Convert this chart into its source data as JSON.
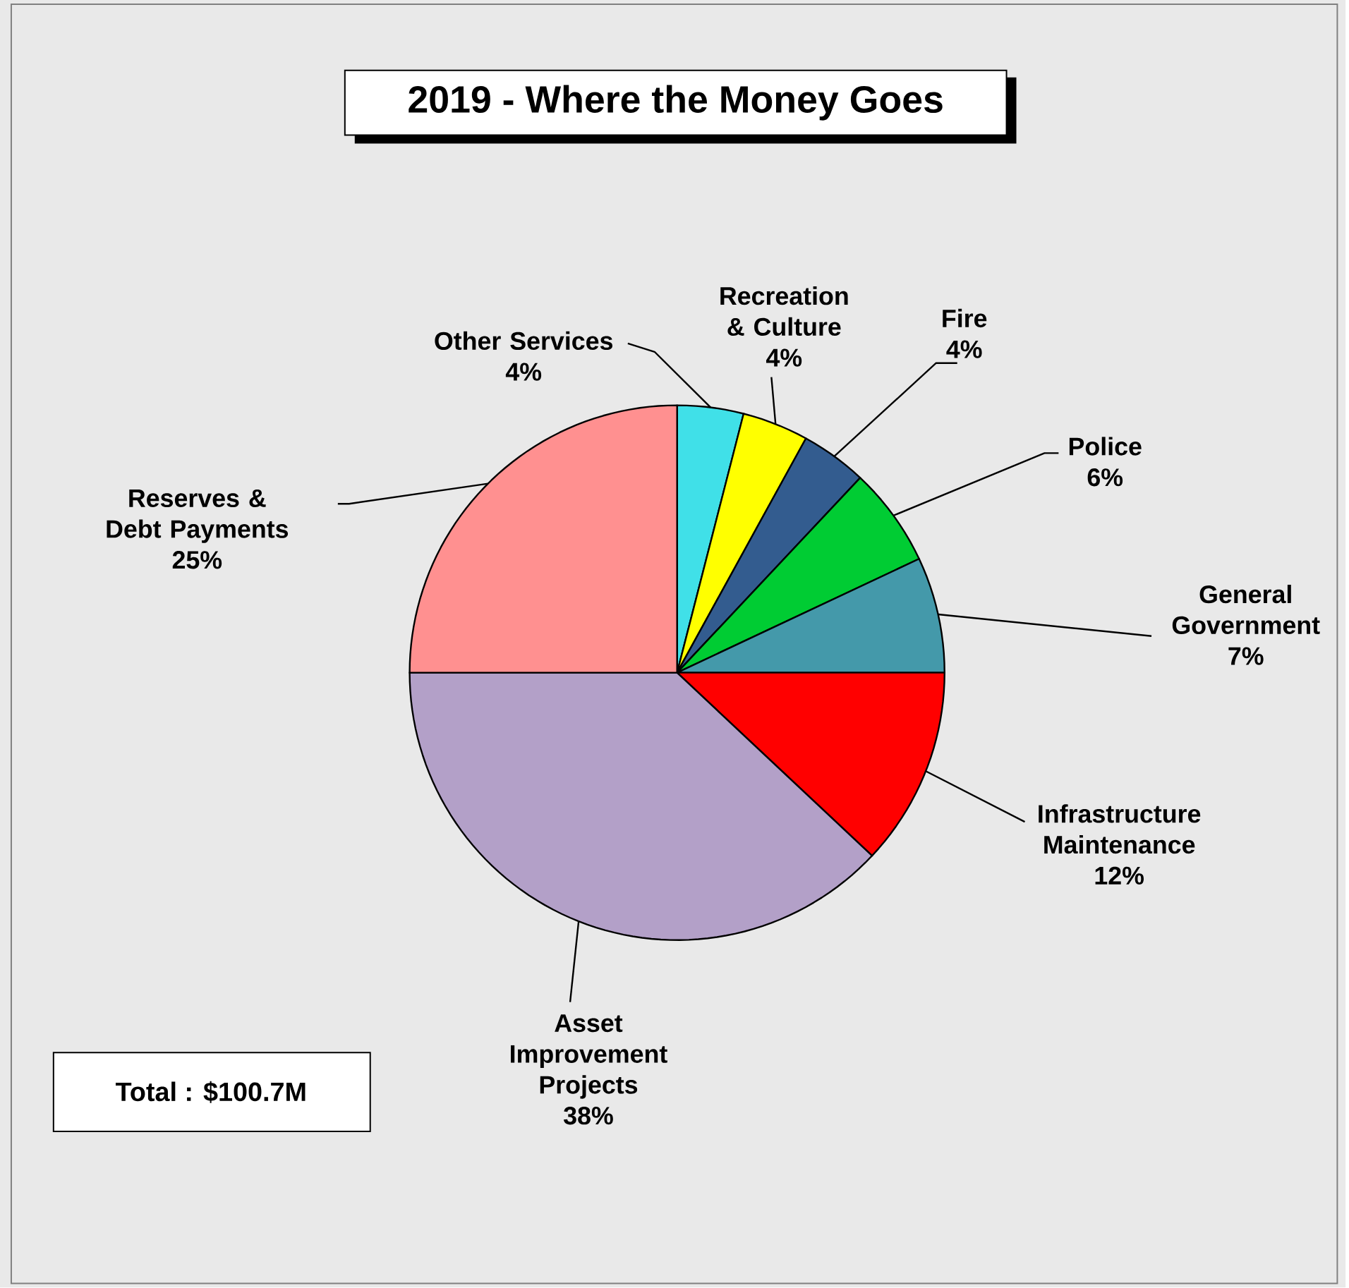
{
  "chart_data": {
    "type": "pie",
    "title": "2019 - Where the Money Goes",
    "categories": [
      "Other Services",
      "Recreation & Culture",
      "Fire",
      "Police",
      "General Government",
      "Infrastructure Maintenance",
      "Asset Improvement Projects",
      "Reserves & Debt Payments"
    ],
    "values": [
      4,
      4,
      4,
      6,
      7,
      12,
      38,
      25
    ],
    "value_labels": [
      "4%",
      "4%",
      "4%",
      "6%",
      "7%",
      "12%",
      "38%",
      "25%"
    ],
    "colors": [
      "#40e0e8",
      "#ffff00",
      "#335c8f",
      "#00cc33",
      "#4499aa",
      "#ff0000",
      "#b3a0c8",
      "#ff9090"
    ],
    "annotations": [
      "Total : $100.7M"
    ]
  }
}
